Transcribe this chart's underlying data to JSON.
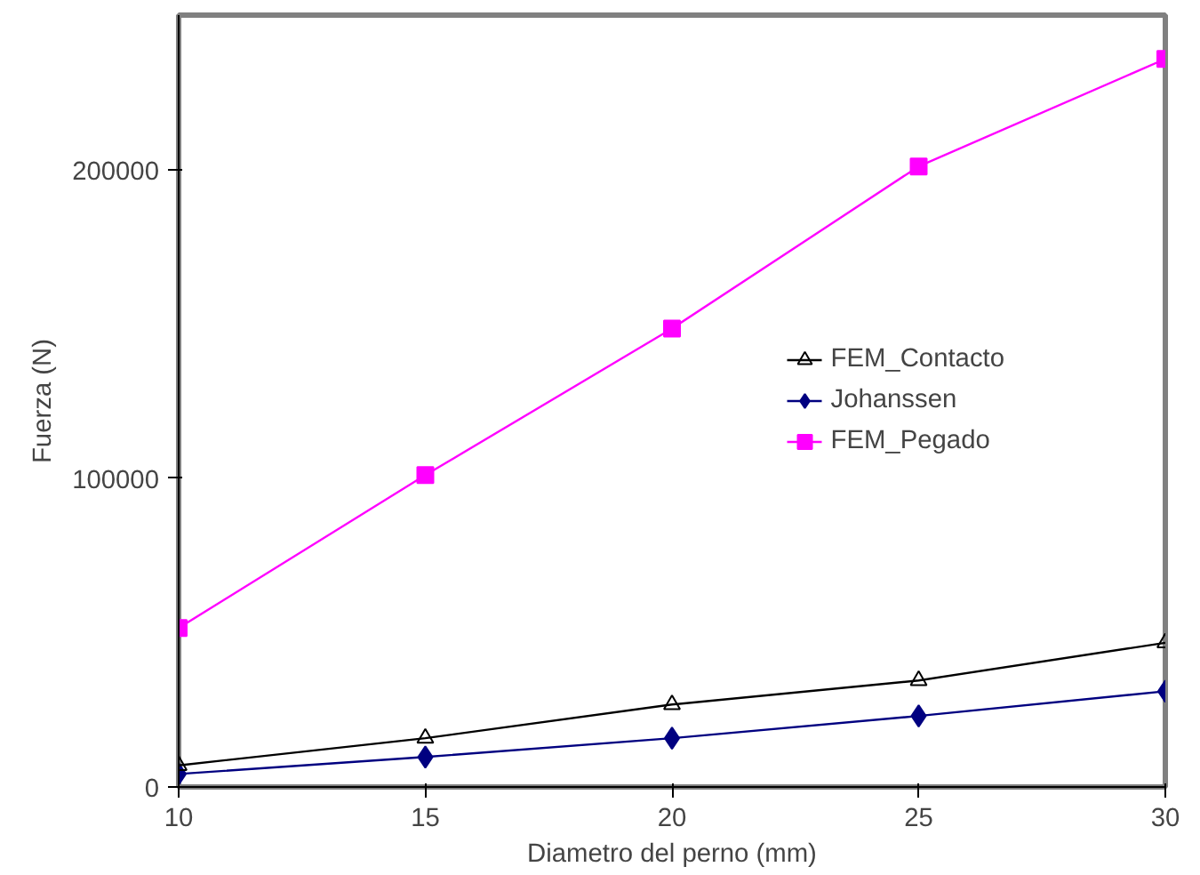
{
  "chart_data": {
    "type": "line",
    "xlabel": "Diametro del perno (mm)",
    "ylabel": "Fuerza (N)",
    "x": [
      10,
      15,
      20,
      25,
      30
    ],
    "xlim": [
      10,
      30
    ],
    "xticks": [
      10,
      15,
      20,
      25,
      30
    ],
    "ylim": [
      0,
      250000
    ],
    "yticks": [
      0,
      100000,
      200000
    ],
    "grid": false,
    "legend": "right",
    "series": [
      {
        "name": "FEM_Contacto",
        "color": "#000000",
        "marker": "triangle",
        "values": [
          7000,
          15800,
          26700,
          34500,
          46700
        ]
      },
      {
        "name": "Johanssen",
        "color": "#000080",
        "marker": "diamond",
        "values": [
          4200,
          9700,
          15800,
          23000,
          31000
        ]
      },
      {
        "name": "FEM_Pegado",
        "color": "#ff00ff",
        "marker": "square",
        "values": [
          51500,
          101000,
          148500,
          201000,
          235800
        ]
      }
    ]
  }
}
